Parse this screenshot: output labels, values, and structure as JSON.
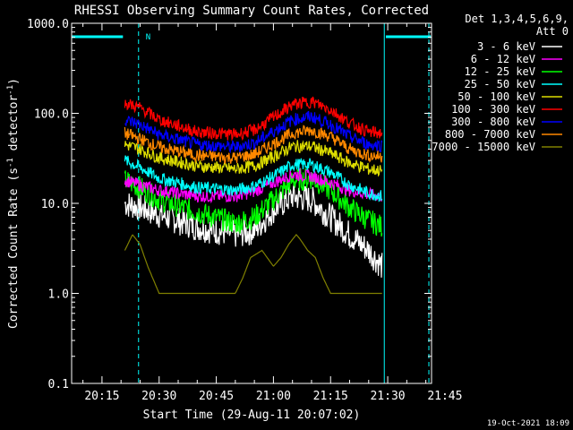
{
  "chart_data": {
    "type": "line",
    "title": "RHESSI Observing Summary Count Rates, Corrected",
    "xlabel": "Start Time (29-Aug-11 20:07:02)",
    "ylabel_main": "Corrected Count Rate (s",
    "ylabel_sup1": "-1",
    "ylabel_mid": " detector",
    "ylabel_sup2": "-1",
    "ylabel_end": ")",
    "footer": "19-Oct-2021 18:09",
    "legend_header": [
      "Det 1,3,4,5,6,9,",
      "Att 0"
    ],
    "x_range_min": [
      7.03,
      101.5
    ],
    "x_ticks": [
      {
        "min": 15,
        "label": "20:15"
      },
      {
        "min": 30,
        "label": "20:30"
      },
      {
        "min": 45,
        "label": "20:45"
      },
      {
        "min": 60,
        "label": "21:00"
      },
      {
        "min": 75,
        "label": "21:15"
      },
      {
        "min": 90,
        "label": "21:30"
      },
      {
        "min": 105,
        "label": "21:45"
      }
    ],
    "ylim": [
      0.1,
      1000
    ],
    "yscale": "log",
    "y_ticks": [
      {
        "v": 1000,
        "label": "1000.0"
      },
      {
        "v": 100,
        "label": "100.0"
      },
      {
        "v": 10,
        "label": "10.0"
      },
      {
        "v": 1,
        "label": "1.0"
      },
      {
        "v": 0.1,
        "label": "0.1"
      }
    ],
    "series": [
      {
        "name": "3 - 6 keV",
        "color": "#ffffff",
        "x": [
          21,
          25,
          30,
          40,
          50,
          55,
          60,
          65,
          70,
          75,
          80,
          85,
          88.5
        ],
        "y": [
          10,
          9,
          7.5,
          5.5,
          4.5,
          5,
          8.5,
          12,
          11,
          7,
          4.5,
          3,
          2
        ]
      },
      {
        "name": "6 - 12 keV",
        "color": "#ff00ff",
        "x": [
          21,
          25,
          30,
          40,
          50,
          55,
          60,
          65,
          70,
          75,
          80,
          85,
          88.5
        ],
        "y": [
          18,
          16,
          14,
          12,
          12,
          13.5,
          17,
          21,
          20,
          17,
          14,
          12.5,
          12
        ]
      },
      {
        "name": "12 - 25 keV",
        "color": "#00ff00",
        "x": [
          21,
          25,
          30,
          40,
          50,
          55,
          60,
          65,
          70,
          75,
          80,
          85,
          88.5
        ],
        "y": [
          18,
          15,
          11,
          8,
          6,
          7,
          11,
          18,
          19,
          14,
          9,
          6.5,
          5.5
        ]
      },
      {
        "name": "25 - 50 keV",
        "color": "#00ffff",
        "x": [
          21,
          25,
          30,
          40,
          50,
          55,
          60,
          65,
          70,
          75,
          80,
          85,
          88.5
        ],
        "y": [
          30,
          25,
          19,
          15,
          14,
          15.5,
          20,
          27,
          27,
          22,
          16,
          13,
          12
        ]
      },
      {
        "name": "50 - 100 keV",
        "color": "#dddd00",
        "x": [
          21,
          25,
          30,
          40,
          50,
          55,
          60,
          65,
          70,
          75,
          80,
          85,
          88.5
        ],
        "y": [
          45,
          40,
          32,
          26,
          24,
          26,
          33,
          43,
          43,
          36,
          28,
          24,
          23
        ]
      },
      {
        "name": "100 - 300 keV",
        "color": "#ff0000",
        "x": [
          21,
          25,
          30,
          40,
          50,
          55,
          60,
          65,
          70,
          75,
          80,
          85,
          88.5
        ],
        "y": [
          130,
          115,
          85,
          62,
          58,
          65,
          90,
          125,
          135,
          110,
          78,
          62,
          60
        ]
      },
      {
        "name": "300 - 800 keV",
        "color": "#0000ff",
        "x": [
          21,
          25,
          30,
          40,
          50,
          55,
          60,
          65,
          70,
          75,
          80,
          85,
          88.5
        ],
        "y": [
          85,
          75,
          58,
          45,
          42,
          47,
          63,
          85,
          92,
          75,
          55,
          45,
          44
        ]
      },
      {
        "name": "800 - 7000 keV",
        "color": "#ff8800",
        "x": [
          21,
          25,
          30,
          40,
          50,
          55,
          60,
          65,
          70,
          75,
          80,
          85,
          88.5
        ],
        "y": [
          60,
          52,
          42,
          34,
          32,
          35,
          46,
          60,
          65,
          55,
          40,
          34,
          33
        ]
      },
      {
        "name": "7000 - 15000 keV",
        "color": "#808000",
        "x": [
          21,
          23,
          25,
          27,
          30,
          45,
          50,
          52,
          54,
          57,
          60,
          62,
          64,
          66,
          67,
          69,
          71,
          73,
          75,
          77,
          80,
          85,
          88.5
        ],
        "y": [
          3,
          4.5,
          3.5,
          2,
          1,
          1,
          1,
          1.5,
          2.5,
          3,
          2,
          2.5,
          3.5,
          4.5,
          4,
          3,
          2.5,
          1.5,
          1,
          1,
          1,
          1,
          1
        ]
      }
    ],
    "attenuator_bars_min": [
      [
        7.03,
        20.5
      ],
      [
        89.5,
        101.3
      ]
    ],
    "attenuator_label": "N",
    "night_lines_min": [
      7.03,
      24.6,
      89.1,
      100.8
    ]
  }
}
